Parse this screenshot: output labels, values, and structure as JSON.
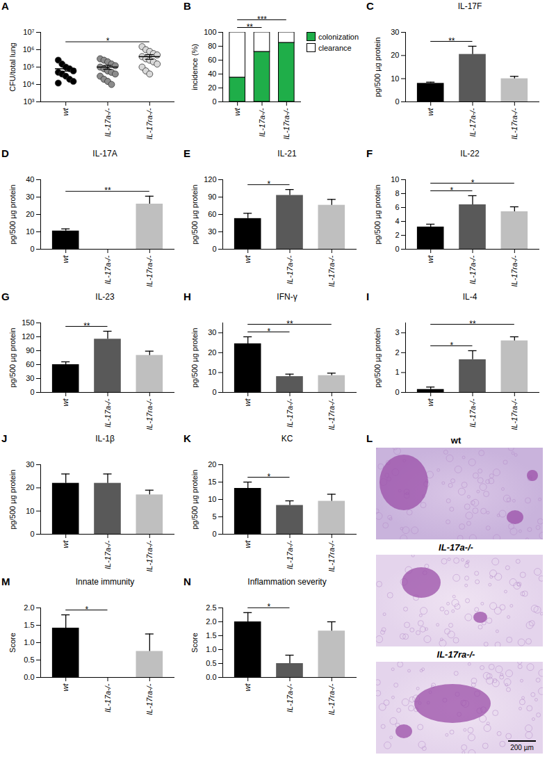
{
  "chart_data": [
    {
      "panel": "A",
      "type": "scatter",
      "log": "y",
      "y_label": "CFU/total lung",
      "categories": [
        "wt",
        "IL-17a-/-",
        "IL-17ra-/-"
      ],
      "values": [
        [
          250000,
          150000,
          100000,
          80000,
          60000,
          50000,
          40000,
          30000,
          20000,
          15000,
          12000
        ],
        [
          300000,
          250000,
          200000,
          150000,
          120000,
          100000,
          80000,
          60000,
          50000,
          40000,
          30000,
          20000,
          15000,
          10000
        ],
        [
          1500000,
          1000000,
          800000,
          600000,
          500000,
          400000,
          300000,
          250000,
          200000,
          150000,
          100000,
          60000,
          40000
        ]
      ],
      "means": [
        80000,
        100000,
        400000
      ],
      "sem": [
        22000,
        25000,
        120000
      ],
      "colors": [
        "#000000",
        "#8c8c8c",
        "#d9d9d9"
      ],
      "ylim": [
        1000,
        10000000
      ],
      "yticks": [
        {
          "value": 1000,
          "label": "10³"
        },
        {
          "value": 10000,
          "label": "10⁴"
        },
        {
          "value": 100000,
          "label": "10⁵"
        },
        {
          "value": 1000000,
          "label": "10⁶"
        },
        {
          "value": 10000000,
          "label": "10⁷"
        }
      ],
      "significance": [
        {
          "from": 0,
          "to": 2,
          "label": "*"
        }
      ]
    },
    {
      "panel": "B",
      "type": "bar",
      "stacked": true,
      "y_label": "incidence (%)",
      "categories": [
        "wt",
        "IL-17a-/-",
        "IL-17ra-/-"
      ],
      "series": [
        {
          "name": "colonization",
          "color": "#1fae49",
          "values": [
            35,
            72,
            85
          ]
        },
        {
          "name": "clearance",
          "color": "#ffffff",
          "values": [
            65,
            28,
            15
          ]
        }
      ],
      "ylim": [
        0,
        100
      ],
      "yticks": [
        0,
        20,
        40,
        60,
        80,
        100
      ],
      "legend": "top-right",
      "significance": [
        {
          "from": 0,
          "to": 1,
          "label": "**"
        },
        {
          "from": 0,
          "to": 2,
          "label": "***"
        }
      ]
    },
    {
      "panel": "C",
      "type": "bar",
      "title": "IL-17F",
      "y_label": "pg/500 µg protein",
      "categories": [
        "wt",
        "IL-17a-/-",
        "IL-17ra-/-"
      ],
      "values": [
        8,
        20.5,
        10
      ],
      "errors": [
        0.5,
        3.5,
        1
      ],
      "colors": [
        "#000000",
        "#595959",
        "#bfbfbf"
      ],
      "ylim": [
        0,
        30
      ],
      "yticks": [
        0,
        10,
        20,
        30
      ],
      "significance": [
        {
          "from": 0,
          "to": 1,
          "label": "**"
        }
      ]
    },
    {
      "panel": "D",
      "type": "bar",
      "title": "IL-17A",
      "y_label": "pg/500 µg protein",
      "categories": [
        "wt",
        "IL-17a-/-",
        "IL-17ra-/-"
      ],
      "values": [
        10.5,
        0,
        26
      ],
      "errors": [
        1.2,
        0,
        4.5
      ],
      "colors": [
        "#000000",
        "#595959",
        "#bfbfbf"
      ],
      "ylim": [
        0,
        40
      ],
      "yticks": [
        0,
        10,
        20,
        30,
        40
      ],
      "significance": [
        {
          "from": 0,
          "to": 2,
          "label": "**"
        }
      ]
    },
    {
      "panel": "E",
      "type": "bar",
      "title": "IL-21",
      "y_label": "pg/500 µg protein",
      "categories": [
        "wt",
        "IL-17a-/-",
        "IL-17ra-/-"
      ],
      "values": [
        53,
        93,
        76
      ],
      "errors": [
        9,
        10,
        10
      ],
      "colors": [
        "#000000",
        "#595959",
        "#bfbfbf"
      ],
      "ylim": [
        0,
        120
      ],
      "yticks": [
        0,
        30,
        60,
        90,
        120
      ],
      "significance": [
        {
          "from": 0,
          "to": 1,
          "label": "*"
        }
      ]
    },
    {
      "panel": "F",
      "type": "bar",
      "title": "IL-22",
      "y_label": "pg/500 µg protein",
      "categories": [
        "wt",
        "IL-17a-/-",
        "IL-17ra-/-"
      ],
      "values": [
        3.2,
        6.4,
        5.4
      ],
      "errors": [
        0.4,
        1.3,
        0.7
      ],
      "colors": [
        "#000000",
        "#595959",
        "#bfbfbf"
      ],
      "ylim": [
        0,
        10
      ],
      "yticks": [
        0,
        2,
        4,
        6,
        8,
        10
      ],
      "significance": [
        {
          "from": 0,
          "to": 1,
          "label": "*"
        },
        {
          "from": 0,
          "to": 2,
          "label": "*"
        }
      ]
    },
    {
      "panel": "G",
      "type": "bar",
      "title": "IL-23",
      "y_label": "pg/500 µg protein",
      "categories": [
        "wt",
        "IL-17a-/-",
        "IL-17ra-/-"
      ],
      "values": [
        60,
        115,
        80
      ],
      "errors": [
        6,
        17,
        9
      ],
      "colors": [
        "#000000",
        "#595959",
        "#bfbfbf"
      ],
      "ylim": [
        0,
        150
      ],
      "yticks": [
        0,
        30,
        60,
        90,
        120,
        150
      ],
      "significance": [
        {
          "from": 0,
          "to": 1,
          "label": "**"
        }
      ]
    },
    {
      "panel": "H",
      "type": "bar",
      "title": "IFN-γ",
      "y_label": "pg/500 µg protein",
      "categories": [
        "wt",
        "IL-17a-/-",
        "IL-17ra-/-"
      ],
      "values": [
        24.5,
        8,
        8.5
      ],
      "errors": [
        3.5,
        1.2,
        1.2
      ],
      "colors": [
        "#000000",
        "#595959",
        "#bfbfbf"
      ],
      "ylim": [
        0,
        35
      ],
      "yticks": [
        0,
        10,
        20,
        30
      ],
      "significance": [
        {
          "from": 0,
          "to": 1,
          "label": "*"
        },
        {
          "from": 0,
          "to": 2,
          "label": "**"
        }
      ]
    },
    {
      "panel": "I",
      "type": "bar",
      "title": "IL-4",
      "y_label": "pg/500 µg protein",
      "categories": [
        "wt",
        "IL-17a-/-",
        "IL-17ra-/-"
      ],
      "values": [
        0.15,
        1.65,
        2.6
      ],
      "errors": [
        0.12,
        0.45,
        0.2
      ],
      "colors": [
        "#000000",
        "#595959",
        "#bfbfbf"
      ],
      "ylim": [
        0,
        3.5
      ],
      "yticks": [
        0,
        1,
        2,
        3
      ],
      "significance": [
        {
          "from": 0,
          "to": 1,
          "label": "*"
        },
        {
          "from": 0,
          "to": 2,
          "label": "**"
        }
      ]
    },
    {
      "panel": "J",
      "type": "bar",
      "title": "IL-1β",
      "y_label": "pg/500 µg protein",
      "categories": [
        "wt",
        "IL-17a-/-",
        "IL-17ra-/-"
      ],
      "values": [
        22,
        22,
        17
      ],
      "errors": [
        4,
        4,
        2
      ],
      "colors": [
        "#000000",
        "#595959",
        "#bfbfbf"
      ],
      "ylim": [
        0,
        30
      ],
      "yticks": [
        0,
        10,
        20,
        30
      ],
      "significance": []
    },
    {
      "panel": "K",
      "type": "bar",
      "title": "KC",
      "y_label": "pg/500 µg protein",
      "categories": [
        "wt",
        "IL-17a-/-",
        "IL-17ra-/-"
      ],
      "values": [
        13.2,
        8.3,
        9.5
      ],
      "errors": [
        1.8,
        1.3,
        2
      ],
      "colors": [
        "#000000",
        "#595959",
        "#bfbfbf"
      ],
      "ylim": [
        0,
        20
      ],
      "yticks": [
        0,
        5,
        10,
        15,
        20
      ],
      "significance": [
        {
          "from": 0,
          "to": 1,
          "label": "*"
        }
      ]
    },
    {
      "panel": "M",
      "type": "bar",
      "title": "Innate immunity",
      "y_label": "Score",
      "categories": [
        "wt",
        "IL-17a-/-",
        "IL-17ra-/-"
      ],
      "values": [
        1.42,
        0,
        0.75
      ],
      "errors": [
        0.38,
        0,
        0.5
      ],
      "colors": [
        "#000000",
        "#595959",
        "#bfbfbf"
      ],
      "ylim": [
        0,
        2
      ],
      "yticks": [
        {
          "value": 0,
          "label": "0.0"
        },
        {
          "value": 0.5,
          "label": "0.5"
        },
        {
          "value": 1,
          "label": "1.0"
        },
        {
          "value": 1.5,
          "label": "1.5"
        },
        {
          "value": 2,
          "label": "2.0"
        }
      ],
      "significance": [
        {
          "from": 0,
          "to": 1,
          "label": "*"
        }
      ]
    },
    {
      "panel": "N",
      "type": "bar",
      "title": "Inflammation severity",
      "y_label": "Score",
      "categories": [
        "wt",
        "IL-17a-/-",
        "IL-17ra-/-"
      ],
      "values": [
        2.0,
        0.5,
        1.67
      ],
      "errors": [
        0.33,
        0.3,
        0.33
      ],
      "colors": [
        "#000000",
        "#595959",
        "#bfbfbf"
      ],
      "ylim": [
        0,
        2.5
      ],
      "yticks": [
        {
          "value": 0,
          "label": "0.0"
        },
        {
          "value": 0.5,
          "label": "0.5"
        },
        {
          "value": 1,
          "label": "1.0"
        },
        {
          "value": 1.5,
          "label": "1.5"
        },
        {
          "value": 2,
          "label": "2.0"
        },
        {
          "value": 2.5,
          "label": "2.5"
        }
      ],
      "significance": [
        {
          "from": 0,
          "to": 1,
          "label": "*"
        }
      ]
    }
  ],
  "histology": {
    "panel": "L",
    "labels": [
      "wt",
      "IL-17a-/-",
      "IL-17ra-/-"
    ],
    "scale_bar": "200 µm"
  }
}
